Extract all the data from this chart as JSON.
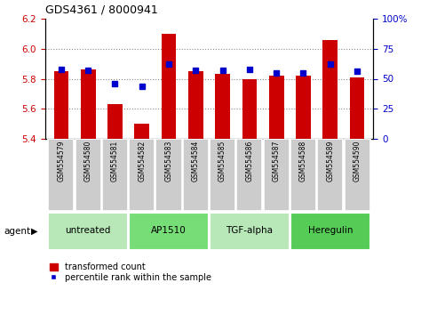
{
  "title": "GDS4361 / 8000941",
  "samples": [
    "GSM554579",
    "GSM554580",
    "GSM554581",
    "GSM554582",
    "GSM554583",
    "GSM554584",
    "GSM554585",
    "GSM554586",
    "GSM554587",
    "GSM554588",
    "GSM554589",
    "GSM554590"
  ],
  "red_values": [
    5.85,
    5.86,
    5.63,
    5.5,
    6.1,
    5.85,
    5.83,
    5.8,
    5.82,
    5.82,
    6.06,
    5.81
  ],
  "blue_values": [
    58,
    57,
    46,
    44,
    62,
    57,
    57,
    58,
    55,
    55,
    62,
    56
  ],
  "ymin": 5.4,
  "ymax": 6.2,
  "y2min": 0,
  "y2max": 100,
  "yticks": [
    5.4,
    5.6,
    5.8,
    6.0,
    6.2
  ],
  "y2ticks": [
    0,
    25,
    50,
    75,
    100
  ],
  "y2ticklabels": [
    "0",
    "25",
    "50",
    "75",
    "100%"
  ],
  "groups": [
    {
      "label": "untreated",
      "start": 0,
      "end": 3
    },
    {
      "label": "AP1510",
      "start": 3,
      "end": 6
    },
    {
      "label": "TGF-alpha",
      "start": 6,
      "end": 9
    },
    {
      "label": "Heregulin",
      "start": 9,
      "end": 12
    }
  ],
  "group_colors": [
    "#b8e8b8",
    "#77dd77",
    "#b8e8b8",
    "#55cc55"
  ],
  "bar_color": "#cc0000",
  "dot_color": "#0000cc",
  "bar_bottom": 5.4,
  "bar_width": 0.55,
  "grid_color": "#888888",
  "bg_plot": "#ffffff",
  "tick_label_bg": "#cccccc",
  "legend_items": [
    "transformed count",
    "percentile rank within the sample"
  ],
  "left_tick_color": "#cc0000",
  "right_tick_color": "#0000cc",
  "agent_label": "agent"
}
